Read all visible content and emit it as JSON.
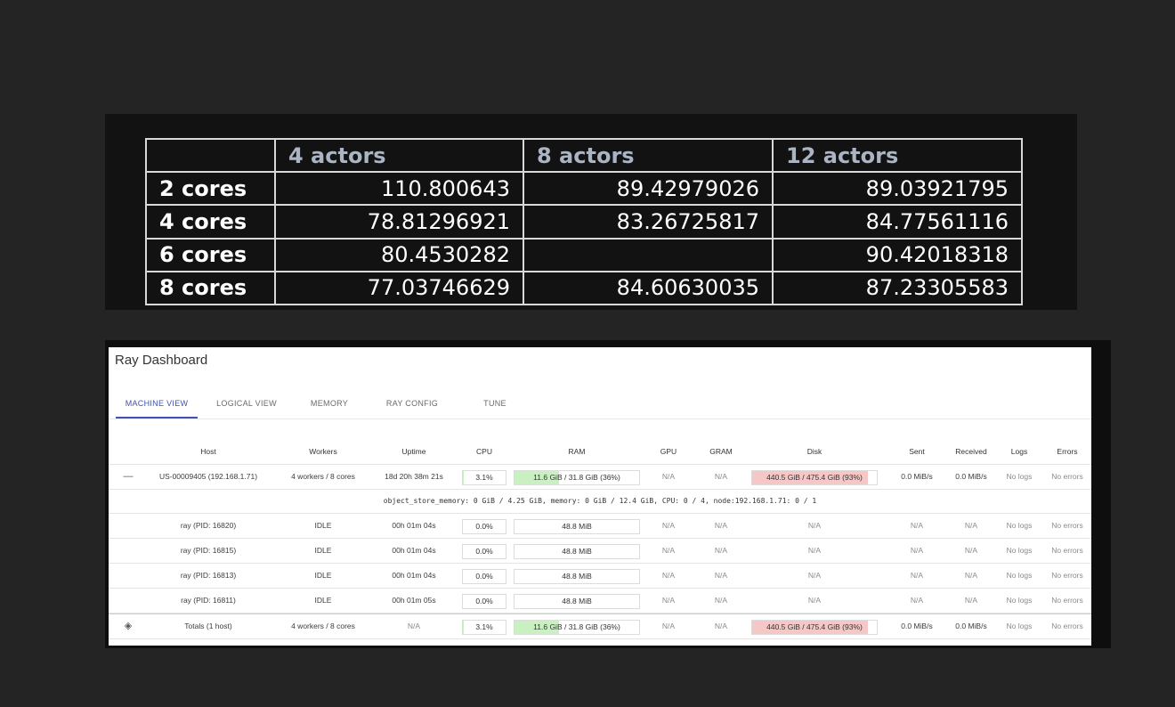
{
  "results": {
    "header": [
      "",
      "4 actors",
      "8 actors",
      "12 actors"
    ],
    "rows": [
      {
        "label": "2 cores",
        "values": [
          "110.800643",
          "89.42979026",
          "89.03921795"
        ]
      },
      {
        "label": "4 cores",
        "values": [
          "78.81296921",
          "83.26725817",
          "84.77561116"
        ]
      },
      {
        "label": "6 cores",
        "values": [
          "80.4530282",
          "",
          "90.42018318"
        ]
      },
      {
        "label": "8 cores",
        "values": [
          "77.03746629",
          "84.60630035",
          "87.23305583"
        ]
      }
    ]
  },
  "dashboard": {
    "title": "Ray Dashboard",
    "tabs": [
      "MACHINE VIEW",
      "LOGICAL VIEW",
      "MEMORY",
      "RAY CONFIG",
      "TUNE"
    ],
    "active_tab": "MACHINE VIEW",
    "columns": [
      "Host",
      "Workers",
      "Uptime",
      "CPU",
      "RAM",
      "GPU",
      "GRAM",
      "Disk",
      "Sent",
      "Received",
      "Logs",
      "Errors"
    ],
    "host": {
      "toggle_icon": "collapse-minus-icon",
      "toggle_glyph": "—",
      "host": "US-00009405 (192.168.1.71)",
      "workers": "4 workers / 8 cores",
      "uptime": "18d 20h 38m 21s",
      "cpu": "3.1%",
      "cpu_fraction": 0.031,
      "ram": "11.6 GiB / 31.8 GiB (36%)",
      "ram_fraction": 0.36,
      "gpu": "N/A",
      "gram": "N/A",
      "disk": "440.5 GiB / 475.4 GiB (93%)",
      "disk_fraction": 0.93,
      "sent": "0.0 MiB/s",
      "received": "0.0 MiB/s",
      "logs": "No logs",
      "errors": "No errors"
    },
    "object_store_info": "object_store_memory: 0 GiB / 4.25 GiB, memory: 0 GiB / 12.4 GiB, CPU: 0 / 4, node:192.168.1.71: 0 / 1",
    "workers": [
      {
        "host": "ray (PID: 16820)",
        "workers": "IDLE",
        "uptime": "00h 01m 04s",
        "cpu": "0.0%",
        "ram": "48.8 MiB",
        "gpu": "N/A",
        "gram": "N/A",
        "disk": "N/A",
        "sent": "N/A",
        "received": "N/A",
        "logs": "No logs",
        "errors": "No errors"
      },
      {
        "host": "ray (PID: 16815)",
        "workers": "IDLE",
        "uptime": "00h 01m 04s",
        "cpu": "0.0%",
        "ram": "48.8 MiB",
        "gpu": "N/A",
        "gram": "N/A",
        "disk": "N/A",
        "sent": "N/A",
        "received": "N/A",
        "logs": "No logs",
        "errors": "No errors"
      },
      {
        "host": "ray (PID: 16813)",
        "workers": "IDLE",
        "uptime": "00h 01m 04s",
        "cpu": "0.0%",
        "ram": "48.8 MiB",
        "gpu": "N/A",
        "gram": "N/A",
        "disk": "N/A",
        "sent": "N/A",
        "received": "N/A",
        "logs": "No logs",
        "errors": "No errors"
      },
      {
        "host": "ray (PID: 16811)",
        "workers": "IDLE",
        "uptime": "00h 01m 05s",
        "cpu": "0.0%",
        "ram": "48.8 MiB",
        "gpu": "N/A",
        "gram": "N/A",
        "disk": "N/A",
        "sent": "N/A",
        "received": "N/A",
        "logs": "No logs",
        "errors": "No errors"
      }
    ],
    "totals": {
      "icon": "layers-icon",
      "icon_glyph": "◈",
      "host": "Totals (1 host)",
      "workers": "4 workers / 8 cores",
      "uptime": "N/A",
      "cpu": "3.1%",
      "cpu_fraction": 0.031,
      "ram": "11.6 GiB / 31.8 GiB (36%)",
      "ram_fraction": 0.36,
      "gpu": "N/A",
      "gram": "N/A",
      "disk": "440.5 GiB / 475.4 GiB (93%)",
      "disk_fraction": 0.93,
      "sent": "0.0 MiB/s",
      "received": "0.0 MiB/s",
      "logs": "No logs",
      "errors": "No errors"
    },
    "colors": {
      "accent": "#3f51b5",
      "bar_ok": "#c8f0c0",
      "bar_high": "#f6c7c7"
    }
  }
}
